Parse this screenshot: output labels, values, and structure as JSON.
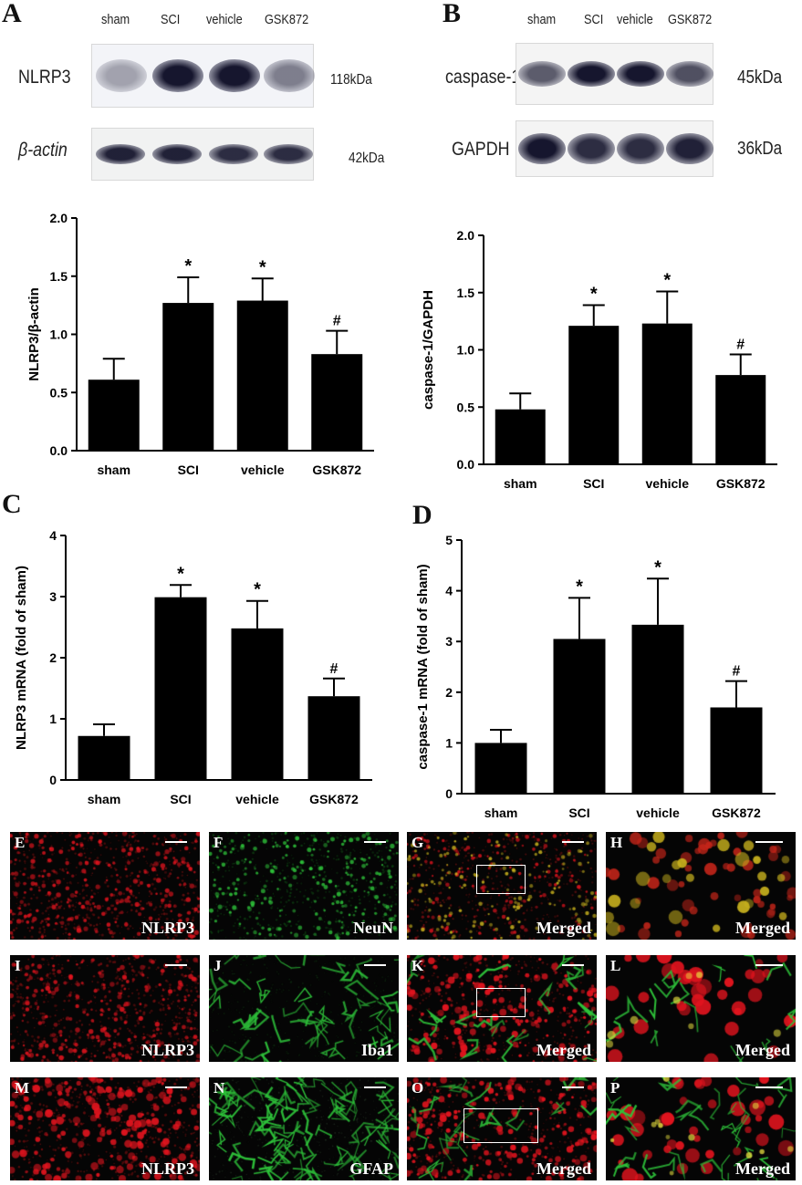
{
  "panel_labels": [
    "A",
    "B",
    "C",
    "D"
  ],
  "blots": [
    {
      "panel": "A",
      "lanes": [
        "sham",
        "SCI",
        "vehicle",
        "GSK872"
      ],
      "rows": [
        {
          "protein": "NLRP3",
          "kda": "118kDa",
          "intensity": [
            0.35,
            0.95,
            0.95,
            0.5
          ]
        },
        {
          "protein": "β-actin",
          "kda": "42kDa",
          "intensity": [
            0.9,
            0.9,
            0.85,
            0.85
          ]
        }
      ]
    },
    {
      "panel": "B",
      "lanes": [
        "sham",
        "SCI",
        "vehicle",
        "GSK872"
      ],
      "rows": [
        {
          "protein": "caspase-1",
          "kda": "45kDa",
          "intensity": [
            0.65,
            0.95,
            0.95,
            0.7
          ]
        },
        {
          "protein": "GAPDH",
          "kda": "36kDa",
          "intensity": [
            0.95,
            0.85,
            0.85,
            0.9
          ]
        }
      ]
    }
  ],
  "chart_data": [
    {
      "panel": "A",
      "type": "bar",
      "categories": [
        "sham",
        "SCI",
        "vehicle",
        "GSK872"
      ],
      "values": [
        0.61,
        1.27,
        1.29,
        0.83
      ],
      "errors": [
        0.18,
        0.22,
        0.19,
        0.2
      ],
      "annotations": [
        "",
        "*",
        "*",
        "#"
      ],
      "ylabel": "NLRP3/β-actin",
      "ylim": [
        0,
        2.0
      ],
      "yticks": [
        "0.0",
        "0.5",
        "1.0",
        "1.5",
        "2.0"
      ],
      "grid": false
    },
    {
      "panel": "B",
      "type": "bar",
      "categories": [
        "sham",
        "SCI",
        "vehicle",
        "GSK872"
      ],
      "values": [
        0.48,
        1.21,
        1.23,
        0.78
      ],
      "errors": [
        0.14,
        0.18,
        0.28,
        0.18
      ],
      "annotations": [
        "",
        "*",
        "*",
        "#"
      ],
      "ylabel": "caspase-1/GAPDH",
      "ylim": [
        0,
        2.0
      ],
      "yticks": [
        "0.0",
        "0.5",
        "1.0",
        "1.5",
        "2.0"
      ],
      "grid": false
    },
    {
      "panel": "C",
      "type": "bar",
      "categories": [
        "sham",
        "SCI",
        "vehicle",
        "GSK872"
      ],
      "values": [
        0.72,
        2.99,
        2.48,
        1.37
      ],
      "errors": [
        0.19,
        0.2,
        0.45,
        0.29
      ],
      "annotations": [
        "",
        "*",
        "*",
        "#"
      ],
      "ylabel": "NLRP3 mRNA (fold of sham)",
      "ylim": [
        0,
        4
      ],
      "yticks": [
        "0",
        "1",
        "2",
        "3",
        "4"
      ],
      "grid": false
    },
    {
      "panel": "D",
      "type": "bar",
      "categories": [
        "sham",
        "SCI",
        "vehicle",
        "GSK872"
      ],
      "values": [
        1.0,
        3.05,
        3.33,
        1.7
      ],
      "errors": [
        0.26,
        0.81,
        0.91,
        0.52
      ],
      "annotations": [
        "",
        "*",
        "*",
        "#"
      ],
      "ylabel": "caspase-1 mRNA (fold of sham)",
      "ylim": [
        0,
        5
      ],
      "yticks": [
        "0",
        "1",
        "2",
        "3",
        "4",
        "5"
      ],
      "grid": false
    }
  ],
  "micrographs": [
    {
      "letter": "E",
      "label": "NLRP3",
      "channel": "red"
    },
    {
      "letter": "F",
      "label": "NeuN",
      "channel": "green"
    },
    {
      "letter": "G",
      "label": "Merged",
      "channel": "merged",
      "roi": true
    },
    {
      "letter": "H",
      "label": "Merged",
      "channel": "zoom-yellow"
    },
    {
      "letter": "I",
      "label": "NLRP3",
      "channel": "red"
    },
    {
      "letter": "J",
      "label": "Iba1",
      "channel": "green-sparse"
    },
    {
      "letter": "K",
      "label": "Merged",
      "channel": "merged-red",
      "roi": true
    },
    {
      "letter": "L",
      "label": "Merged",
      "channel": "zoom-red"
    },
    {
      "letter": "M",
      "label": "NLRP3",
      "channel": "red-dense"
    },
    {
      "letter": "N",
      "label": "GFAP",
      "channel": "green-fiber"
    },
    {
      "letter": "O",
      "label": "Merged",
      "channel": "merged-red",
      "roi": true
    },
    {
      "letter": "P",
      "label": "Merged",
      "channel": "zoom-fiber"
    }
  ],
  "colors": {
    "bar": "#000000",
    "red": "#e0141e",
    "green": "#2ec23a",
    "yellow": "#c9b21e"
  }
}
